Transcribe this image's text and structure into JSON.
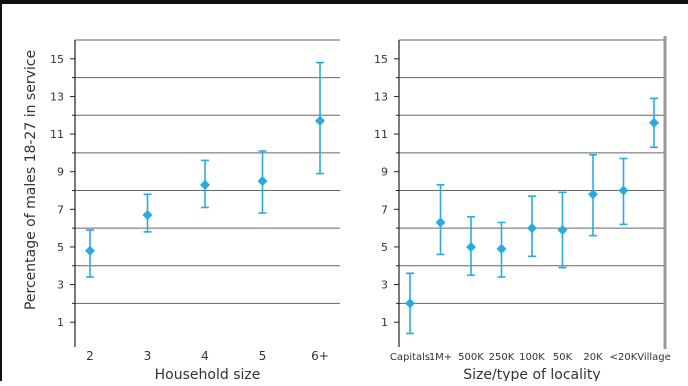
{
  "y_axis_label": "Percentage of males 18-27 in service",
  "chart_data": [
    {
      "type": "scatter",
      "xlabel": "Household size",
      "ylabel": "Percentage of males 18-27 in service",
      "categories": [
        "2",
        "3",
        "4",
        "5",
        "6+"
      ],
      "values": [
        4.8,
        6.7,
        8.3,
        8.5,
        11.7
      ],
      "error_low": [
        3.4,
        5.8,
        7.1,
        6.8,
        8.9
      ],
      "error_high": [
        5.9,
        7.8,
        9.6,
        10.1,
        14.8
      ],
      "yticks": [
        1,
        3,
        5,
        7,
        9,
        11,
        13,
        15
      ],
      "ylim": [
        0,
        16
      ],
      "color": "#29abe2",
      "grid": true
    },
    {
      "type": "scatter",
      "xlabel": "Size/type of locality",
      "ylabel": "",
      "categories": [
        "Capitals",
        "1M+",
        "500K",
        "250K",
        "100K",
        "50K",
        "20K",
        "<20K",
        "Village"
      ],
      "values": [
        2.0,
        6.3,
        5.0,
        4.9,
        6.0,
        5.9,
        7.8,
        8.0,
        11.6
      ],
      "error_low": [
        0.4,
        4.6,
        3.5,
        3.4,
        4.5,
        3.9,
        5.6,
        6.2,
        10.3
      ],
      "error_high": [
        3.6,
        8.3,
        6.6,
        6.3,
        7.7,
        7.9,
        9.9,
        9.7,
        12.9
      ],
      "yticks": [
        1,
        3,
        5,
        7,
        9,
        11,
        13,
        15
      ],
      "ylim": [
        0,
        16
      ],
      "color": "#29abe2",
      "grid": true
    }
  ]
}
